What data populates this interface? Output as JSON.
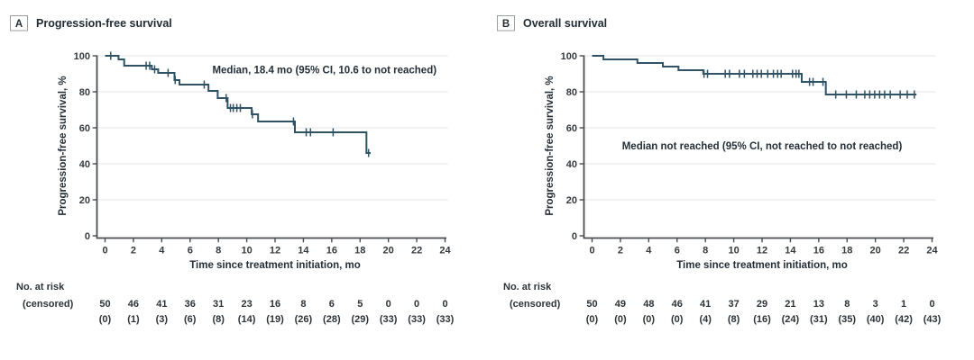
{
  "figure": {
    "risk_header": "No. at risk",
    "risk_subheader": "(censored)",
    "colors": {
      "curve": "#2F5365",
      "axis": "#4A4E52",
      "grid": "#E9E9E9",
      "text": "#242F38",
      "background": "#FFFFFF"
    }
  },
  "chart_data": [
    {
      "type": "line",
      "subtype": "kaplan-meier-step",
      "panel_label": "A",
      "title": "Progression-free survival",
      "ylabel": "Progression-free survival, %",
      "xlabel": "Time since treatment initiation, mo",
      "annotation": {
        "text": "Median, 18.4 mo (95% CI, 10.6 to not reached)",
        "x_mo": 23.4,
        "y_pct": 90.3,
        "align": "end"
      },
      "xlim": [
        0,
        24
      ],
      "ylim": [
        0,
        100
      ],
      "xticks": [
        0,
        2,
        4,
        6,
        8,
        10,
        12,
        14,
        16,
        18,
        20,
        22,
        24
      ],
      "yticks": [
        0,
        20,
        40,
        60,
        80,
        100
      ],
      "grid": "horizontal",
      "curve_end_mo": 18.75,
      "steps": [
        [
          0,
          100
        ],
        [
          0.95,
          98
        ],
        [
          1.35,
          94.5
        ],
        [
          3.3,
          92.5
        ],
        [
          3.75,
          90.5
        ],
        [
          4.9,
          86.5
        ],
        [
          5.25,
          84
        ],
        [
          7.3,
          80.5
        ],
        [
          7.95,
          76.5
        ],
        [
          8.65,
          71
        ],
        [
          10.35,
          67.5
        ],
        [
          10.8,
          63.5
        ],
        [
          13.4,
          57.5
        ],
        [
          18.45,
          46
        ]
      ],
      "censors": [
        [
          0.4,
          100
        ],
        [
          2.9,
          94.5
        ],
        [
          3.15,
          94.5
        ],
        [
          3.5,
          92.5
        ],
        [
          4.45,
          90.5
        ],
        [
          4.95,
          86.5
        ],
        [
          7.0,
          84
        ],
        [
          8.55,
          76.5
        ],
        [
          8.85,
          71
        ],
        [
          9.05,
          71
        ],
        [
          9.3,
          71
        ],
        [
          9.55,
          71
        ],
        [
          10.4,
          67.5
        ],
        [
          13.3,
          63.5
        ],
        [
          14.2,
          57.5
        ],
        [
          14.5,
          57.5
        ],
        [
          16.1,
          57.5
        ],
        [
          18.6,
          46
        ]
      ],
      "at_risk": [
        50,
        46,
        41,
        36,
        31,
        23,
        16,
        8,
        6,
        5,
        0,
        0,
        0
      ],
      "censored_counts": [
        0,
        1,
        3,
        6,
        8,
        14,
        19,
        26,
        28,
        29,
        33,
        33,
        33
      ]
    },
    {
      "type": "line",
      "subtype": "kaplan-meier-step",
      "panel_label": "B",
      "title": "Overall survival",
      "ylabel": "Progression-free survival, %",
      "xlabel": "Time since treatment initiation, mo",
      "annotation": {
        "text": "Median not reached (95% CI, not reached to not reached)",
        "x_mo": 12.0,
        "y_pct": 48,
        "align": "middle"
      },
      "xlim": [
        0,
        24
      ],
      "ylim": [
        0,
        100
      ],
      "xticks": [
        0,
        2,
        4,
        6,
        8,
        10,
        12,
        14,
        16,
        18,
        20,
        22,
        24
      ],
      "yticks": [
        0,
        20,
        40,
        60,
        80,
        100
      ],
      "grid": "horizontal",
      "curve_end_mo": 22.9,
      "steps": [
        [
          0,
          100
        ],
        [
          0.8,
          98
        ],
        [
          3.2,
          96
        ],
        [
          5.0,
          94
        ],
        [
          6.1,
          92
        ],
        [
          7.85,
          90
        ],
        [
          14.8,
          85.5
        ],
        [
          16.5,
          78.5
        ]
      ],
      "censors": [
        [
          7.9,
          90
        ],
        [
          8.15,
          90
        ],
        [
          9.4,
          90
        ],
        [
          9.7,
          90
        ],
        [
          10.4,
          90
        ],
        [
          10.75,
          90
        ],
        [
          11.35,
          90
        ],
        [
          11.65,
          90
        ],
        [
          11.95,
          90
        ],
        [
          12.4,
          90
        ],
        [
          12.8,
          90
        ],
        [
          13.1,
          90
        ],
        [
          13.35,
          90
        ],
        [
          14.15,
          90
        ],
        [
          14.4,
          90
        ],
        [
          14.6,
          90
        ],
        [
          15.35,
          85.5
        ],
        [
          15.6,
          85.5
        ],
        [
          16.3,
          85.5
        ],
        [
          17.2,
          78.5
        ],
        [
          17.95,
          78.5
        ],
        [
          18.65,
          78.5
        ],
        [
          19.25,
          78.5
        ],
        [
          19.6,
          78.5
        ],
        [
          19.95,
          78.5
        ],
        [
          20.3,
          78.5
        ],
        [
          20.65,
          78.5
        ],
        [
          21.05,
          78.5
        ],
        [
          21.75,
          78.5
        ],
        [
          22.25,
          78.5
        ],
        [
          22.75,
          78.5
        ]
      ],
      "at_risk": [
        50,
        49,
        48,
        46,
        41,
        37,
        29,
        21,
        13,
        8,
        3,
        1,
        0
      ],
      "censored_counts": [
        0,
        0,
        0,
        0,
        4,
        8,
        16,
        24,
        31,
        35,
        40,
        42,
        43
      ]
    }
  ]
}
